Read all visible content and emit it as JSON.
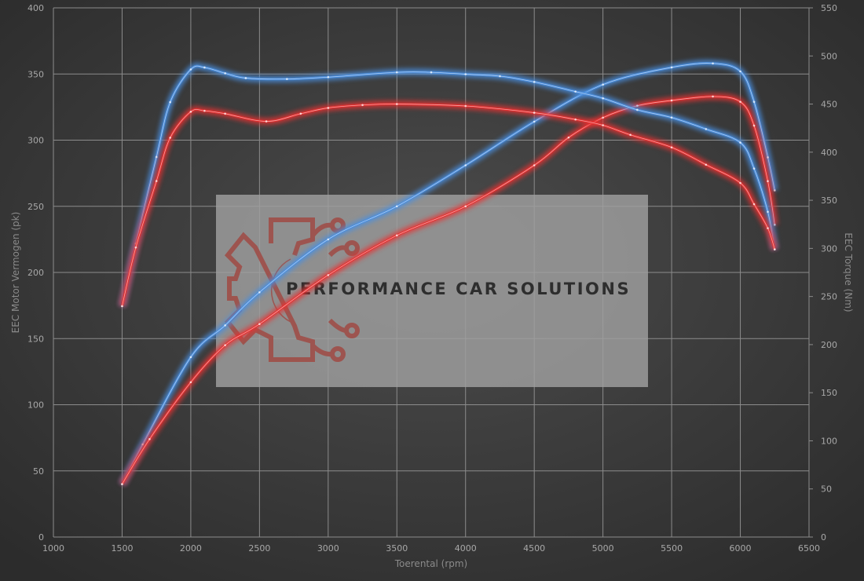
{
  "chart_data": {
    "type": "line",
    "title": "",
    "xlabel": "Toerental (rpm)",
    "ylabel_left": "EEC Motor Vermogen (pk)",
    "ylabel_right": "EEC Torque (Nm)",
    "xlim": [
      1000,
      6500
    ],
    "ylim_left": [
      0,
      400
    ],
    "ylim_right": [
      0,
      550
    ],
    "x_ticks": [
      "1000",
      "1500",
      "2000",
      "2500",
      "3000",
      "3500",
      "4000",
      "4500",
      "5000",
      "5500",
      "6000",
      "6500"
    ],
    "y_left_ticks": [
      "0",
      "50",
      "100",
      "150",
      "200",
      "250",
      "300",
      "350",
      "400"
    ],
    "y_right_ticks": [
      "0",
      "50",
      "100",
      "150",
      "200",
      "250",
      "300",
      "350",
      "400",
      "450",
      "500",
      "550"
    ],
    "grid": true,
    "watermark": "PERFORMANCE CAR SOLUTIONS",
    "series": [
      {
        "axis": "left",
        "color": "#4a8fe0",
        "points": [
          [
            1500,
            40
          ],
          [
            1650,
            70
          ],
          [
            2000,
            136
          ],
          [
            2250,
            160
          ],
          [
            2500,
            185
          ],
          [
            3000,
            225
          ],
          [
            3500,
            250
          ],
          [
            4000,
            281
          ],
          [
            4500,
            314
          ],
          [
            5000,
            342
          ],
          [
            5500,
            355
          ],
          [
            5800,
            358
          ],
          [
            6000,
            352
          ],
          [
            6100,
            329
          ],
          [
            6200,
            287
          ],
          [
            6250,
            262
          ]
        ]
      },
      {
        "axis": "left",
        "color": "#e83030",
        "points": [
          [
            1500,
            40
          ],
          [
            1700,
            74
          ],
          [
            2000,
            117
          ],
          [
            2250,
            145
          ],
          [
            2500,
            161
          ],
          [
            3000,
            198
          ],
          [
            3500,
            228
          ],
          [
            4000,
            250
          ],
          [
            4500,
            281
          ],
          [
            4750,
            302
          ],
          [
            5000,
            317
          ],
          [
            5250,
            326
          ],
          [
            5500,
            330
          ],
          [
            5800,
            333
          ],
          [
            6000,
            329
          ],
          [
            6100,
            311
          ],
          [
            6200,
            269
          ],
          [
            6250,
            236
          ]
        ]
      },
      {
        "axis": "right",
        "color": "#4a8fe0",
        "points": [
          [
            1500,
            240
          ],
          [
            1600,
            305
          ],
          [
            1750,
            395
          ],
          [
            1850,
            452
          ],
          [
            2000,
            486
          ],
          [
            2100,
            488
          ],
          [
            2250,
            482
          ],
          [
            2400,
            477
          ],
          [
            2700,
            476
          ],
          [
            3000,
            478
          ],
          [
            3500,
            483
          ],
          [
            3750,
            483
          ],
          [
            4000,
            481
          ],
          [
            4250,
            479
          ],
          [
            4500,
            473
          ],
          [
            4800,
            463
          ],
          [
            5000,
            456
          ],
          [
            5250,
            444
          ],
          [
            5500,
            436
          ],
          [
            5750,
            424
          ],
          [
            6000,
            410
          ],
          [
            6100,
            383
          ],
          [
            6200,
            338
          ],
          [
            6250,
            299
          ]
        ]
      },
      {
        "axis": "right",
        "color": "#e83030",
        "points": [
          [
            1500,
            240
          ],
          [
            1600,
            301
          ],
          [
            1750,
            370
          ],
          [
            1850,
            415
          ],
          [
            2000,
            442
          ],
          [
            2100,
            443
          ],
          [
            2250,
            440
          ],
          [
            2550,
            432
          ],
          [
            2800,
            440
          ],
          [
            3000,
            446
          ],
          [
            3250,
            449
          ],
          [
            3500,
            450
          ],
          [
            4000,
            448
          ],
          [
            4500,
            441
          ],
          [
            4800,
            434
          ],
          [
            5000,
            428
          ],
          [
            5200,
            418
          ],
          [
            5500,
            405
          ],
          [
            5750,
            387
          ],
          [
            6000,
            368
          ],
          [
            6100,
            346
          ],
          [
            6200,
            321
          ],
          [
            6250,
            299
          ]
        ]
      }
    ]
  }
}
